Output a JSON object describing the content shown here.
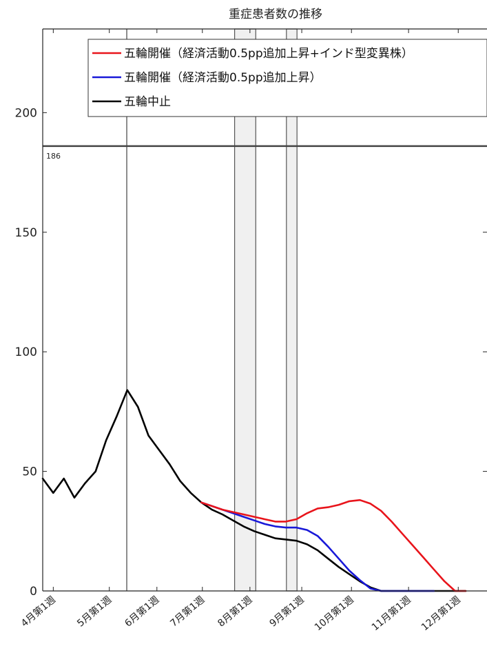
{
  "chart_data": {
    "type": "line",
    "title": "重症患者数の推移",
    "xlabel": "",
    "ylabel": "",
    "ylim": [
      0,
      235
    ],
    "yticks": [
      0,
      50,
      100,
      150,
      200
    ],
    "x_tick_labels": [
      "4月第1週",
      "5月第1週",
      "6月第1週",
      "7月第1週",
      "8月第1週",
      "9月第1週",
      "10月第1週",
      "11月第1週",
      "12月第1週"
    ],
    "reference_line": {
      "value": 186,
      "label": "186"
    },
    "shaded_periods": [
      {
        "start_week": 18.15,
        "end_week": 20.15
      },
      {
        "start_week": 23.05,
        "end_week": 24.05
      }
    ],
    "vertical_line_week": 7.95,
    "legend_position": "top-right",
    "colors": {
      "red": "#e8141b",
      "blue": "#1818d8",
      "black": "#000000",
      "ref": "#444444",
      "shade": "#f0f0f0"
    },
    "series": [
      {
        "name": "五輪開催（経済活動0.5pp追加上昇+インド型変異株）",
        "color": "#e8141b",
        "x": [
          15,
          16,
          17,
          18,
          19,
          20,
          21,
          22,
          23,
          24,
          25,
          26,
          27,
          28,
          29,
          30,
          31,
          32,
          33,
          34,
          35,
          36,
          37,
          38,
          39,
          40
        ],
        "values": [
          37,
          35.5,
          34,
          33,
          32,
          31,
          30,
          29,
          29,
          30,
          32.5,
          34.5,
          35,
          36,
          37.5,
          38,
          36.5,
          33.5,
          29,
          24,
          19,
          14,
          9,
          4,
          0,
          0
        ]
      },
      {
        "name": "五輪開催（経済活動0.5pp追加上昇）",
        "color": "#1818d8",
        "x": [
          15,
          16,
          17,
          18,
          19,
          20,
          21,
          22,
          23,
          24,
          25,
          26,
          27,
          28,
          29,
          30,
          31,
          32,
          33,
          34,
          35,
          36,
          37
        ],
        "values": [
          37,
          35.5,
          34,
          32.5,
          31,
          29.5,
          28,
          27,
          26.5,
          26.5,
          25.5,
          23,
          18.5,
          13.5,
          8.5,
          4.5,
          1,
          0,
          0,
          0,
          0,
          0,
          0
        ]
      },
      {
        "name": "五輪中止",
        "color": "#000000",
        "x": [
          0,
          1,
          2,
          3,
          4,
          5,
          6,
          7,
          8,
          9,
          10,
          11,
          12,
          13,
          14,
          15,
          16,
          17,
          18,
          19,
          20,
          21,
          22,
          23,
          24,
          25,
          26,
          27,
          28,
          29,
          30,
          31,
          32,
          33,
          34,
          35,
          36,
          37,
          38,
          39,
          40
        ],
        "values": [
          47,
          41,
          47,
          39,
          45,
          50,
          63,
          73,
          84,
          77,
          65,
          59,
          53,
          46,
          41,
          37,
          34,
          32,
          29.5,
          27,
          25,
          23.5,
          22,
          21.5,
          21,
          19.5,
          17,
          13.5,
          10,
          7,
          4,
          1.5,
          0,
          0,
          0,
          0,
          0,
          0,
          0,
          0,
          0
        ]
      }
    ]
  }
}
